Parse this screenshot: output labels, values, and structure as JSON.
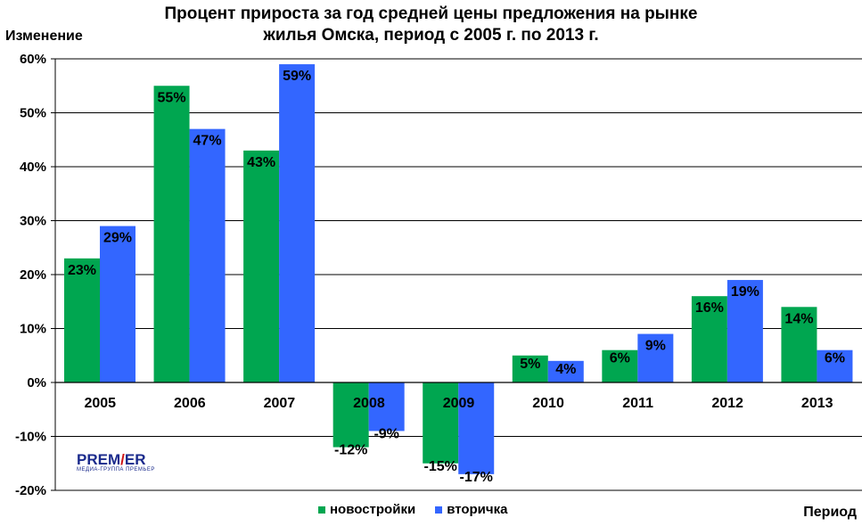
{
  "chart_data": {
    "type": "bar",
    "title_line1": "Процент прироста за год средней цены предложения на рынке",
    "title_line2": "жилья Омска, период с 2005 г. по 2013 г.",
    "ylabel": "Изменение",
    "xlabel": "Период",
    "ylim": [
      -20,
      60
    ],
    "yticks": [
      60,
      50,
      40,
      30,
      20,
      10,
      0,
      -10,
      -20
    ],
    "ytick_labels": [
      "60%",
      "50%",
      "40%",
      "30%",
      "20%",
      "10%",
      "0%",
      "-10%",
      "-20%"
    ],
    "grid": true,
    "categories": [
      "2005",
      "2006",
      "2007",
      "2008",
      "2009",
      "2010",
      "2011",
      "2012",
      "2013"
    ],
    "series": [
      {
        "name": "новостройки",
        "color": "#00a650",
        "values": [
          23,
          55,
          43,
          -12,
          -15,
          5,
          6,
          16,
          14
        ],
        "labels": [
          "23%",
          "55%",
          "43%",
          "-12%",
          "-15%",
          "5%",
          "6%",
          "16%",
          "14%"
        ]
      },
      {
        "name": "вторичка",
        "color": "#3366ff",
        "values": [
          29,
          47,
          59,
          -9,
          -17,
          4,
          9,
          19,
          6
        ],
        "labels": [
          "29%",
          "47%",
          "59%",
          "-9%",
          "-17%",
          "4%",
          "9%",
          "19%",
          "6%"
        ]
      }
    ],
    "legend_position": "bottom"
  },
  "logo": {
    "brand": "PREM/ER",
    "brand_left": "PREM",
    "brand_slash": "/",
    "brand_right": "ER",
    "tagline": "МЕДИА-ГРУППА ПРЕМЬЕР"
  }
}
